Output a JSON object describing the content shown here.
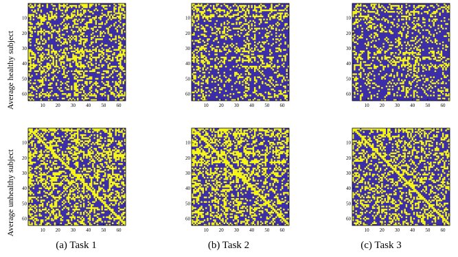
{
  "row_labels": [
    "Average healthy subject",
    "Average unhealthy subject"
  ],
  "captions": [
    "(a) Task 1",
    "(b) Task 2",
    "(c) Task 3"
  ],
  "colors": {
    "one": "#f7f716",
    "zero": "#3b2ea8",
    "frame": "#000000"
  },
  "chart_data": [
    {
      "type": "heatmap",
      "task": "Task 1",
      "group": "healthy",
      "size": 64,
      "values": [
        0,
        1
      ],
      "diagonal": 0,
      "row_fill_density": [
        0.2,
        0.8,
        0.2,
        0.15,
        0.5,
        0.3,
        0.15,
        0.45,
        0.8,
        0.5,
        0.3,
        0.15,
        0.2,
        0.4,
        0.2,
        0.5,
        0.4,
        0.15,
        0.4,
        0.2,
        0.15,
        0.3,
        0.2,
        0.6,
        0.15,
        0.3,
        0.15,
        0.15,
        0.15,
        0.2,
        0.7,
        0.5,
        0.55,
        0.3,
        0.6,
        0.7,
        0.7,
        0.35,
        0.3,
        0.15,
        0.5,
        0.6,
        0.4,
        0.15,
        0.8,
        0.3,
        0.15,
        0.15,
        0.3,
        0.2,
        0.15,
        0.15,
        0.5,
        0.3,
        0.2,
        0.15,
        0.2,
        0.15,
        0.15,
        0.6,
        0.85,
        0.2,
        0.2,
        0.15
      ],
      "xticks": [
        10,
        20,
        30,
        40,
        50,
        60
      ],
      "yticks": [
        10,
        20,
        30,
        40,
        50,
        60
      ],
      "xlim": [
        1,
        64
      ],
      "ylim": [
        1,
        64
      ]
    },
    {
      "type": "heatmap",
      "task": "Task 2",
      "group": "healthy",
      "size": 64,
      "values": [
        0,
        1
      ],
      "diagonal": 0,
      "row_fill_density": [
        0.2,
        0.6,
        0.3,
        0.4,
        0.85,
        0.2,
        0.3,
        0.5,
        0.8,
        0.3,
        0.15,
        0.15,
        0.2,
        0.3,
        0.15,
        0.15,
        0.4,
        0.3,
        0.2,
        0.15,
        0.15,
        0.5,
        0.2,
        0.15,
        0.2,
        0.15,
        0.15,
        0.15,
        0.2,
        0.3,
        0.5,
        0.3,
        0.15,
        0.15,
        0.15,
        0.7,
        0.6,
        0.6,
        0.3,
        0.2,
        0.2,
        0.7,
        0.15,
        0.15,
        0.15,
        0.2,
        0.15,
        0.15,
        0.2,
        0.15,
        0.15,
        0.2,
        0.3,
        0.15,
        0.15,
        0.2,
        0.15,
        0.2,
        0.3,
        0.15,
        0.2,
        0.15,
        0.15,
        0.15
      ],
      "xticks": [
        10,
        20,
        30,
        40,
        50,
        60
      ],
      "yticks": [
        10,
        20,
        30,
        40,
        50,
        60
      ],
      "xlim": [
        1,
        64
      ],
      "ylim": [
        1,
        64
      ]
    },
    {
      "type": "heatmap",
      "task": "Task 3",
      "group": "healthy",
      "size": 64,
      "values": [
        0,
        1
      ],
      "diagonal": 0,
      "row_fill_density": [
        0.15,
        0.6,
        0.3,
        0.2,
        0.15,
        0.8,
        0.3,
        0.15,
        0.15,
        0.15,
        0.4,
        0.15,
        0.15,
        0.2,
        0.3,
        0.15,
        0.15,
        0.15,
        0.2,
        0.15,
        0.15,
        0.15,
        0.2,
        0.15,
        0.15,
        0.3,
        0.15,
        0.15,
        0.15,
        0.2,
        0.15,
        0.3,
        0.6,
        0.3,
        0.15,
        0.7,
        0.6,
        0.4,
        0.15,
        0.15,
        0.7,
        0.5,
        0.5,
        0.15,
        0.15,
        0.15,
        0.4,
        0.15,
        0.15,
        0.15,
        0.2,
        0.2,
        0.3,
        0.15,
        0.15,
        0.15,
        0.2,
        0.15,
        0.15,
        0.2,
        0.15,
        0.15,
        0.2,
        0.15
      ],
      "xticks": [
        10,
        20,
        30,
        40,
        50,
        60
      ],
      "yticks": [
        10,
        20,
        30,
        40,
        50,
        60
      ],
      "xlim": [
        1,
        64
      ],
      "ylim": [
        1,
        64
      ]
    },
    {
      "type": "heatmap",
      "task": "Task 1",
      "group": "unhealthy",
      "size": 64,
      "values": [
        0,
        1
      ],
      "diagonal": 1,
      "row_fill_density": [
        0.85,
        0.85,
        0.5,
        0.3,
        0.4,
        0.3,
        0.3,
        0.3,
        0.6,
        0.3,
        0.3,
        0.3,
        0.3,
        0.3,
        0.3,
        0.6,
        0.6,
        0.7,
        0.7,
        0.4,
        0.3,
        0.3,
        0.3,
        0.3,
        0.3,
        0.3,
        0.6,
        0.3,
        0.3,
        0.3,
        0.7,
        0.6,
        0.6,
        0.3,
        0.3,
        0.3,
        0.7,
        0.3,
        0.3,
        0.3,
        0.3,
        0.5,
        0.3,
        0.3,
        0.3,
        0.6,
        0.3,
        0.3,
        0.3,
        0.3,
        0.3,
        0.3,
        0.3,
        0.6,
        0.3,
        0.3,
        0.3,
        0.3,
        0.3,
        0.6,
        0.3,
        0.3,
        0.3,
        0.3
      ],
      "xticks": [
        10,
        20,
        30,
        40,
        50,
        60
      ],
      "yticks": [
        10,
        20,
        30,
        40,
        50,
        60
      ],
      "xlim": [
        1,
        64
      ],
      "ylim": [
        1,
        64
      ]
    },
    {
      "type": "heatmap",
      "task": "Task 2",
      "group": "unhealthy",
      "size": 64,
      "values": [
        0,
        1
      ],
      "diagonal": 1,
      "row_fill_density": [
        0.85,
        0.85,
        0.5,
        0.7,
        0.5,
        0.4,
        0.3,
        0.3,
        0.3,
        0.4,
        0.3,
        0.3,
        0.3,
        0.3,
        0.3,
        0.7,
        0.7,
        0.6,
        0.3,
        0.3,
        0.3,
        0.6,
        0.85,
        0.3,
        0.3,
        0.3,
        0.3,
        0.3,
        0.3,
        0.7,
        0.85,
        0.3,
        0.3,
        0.3,
        0.5,
        0.3,
        0.3,
        0.4,
        0.3,
        0.3,
        0.6,
        0.3,
        0.3,
        0.3,
        0.3,
        0.3,
        0.3,
        0.3,
        0.7,
        0.3,
        0.3,
        0.3,
        0.3,
        0.3,
        0.3,
        0.6,
        0.3,
        0.3,
        0.3,
        0.3,
        0.3,
        0.3,
        0.3,
        0.3
      ],
      "xticks": [
        10,
        20,
        30,
        40,
        50,
        60
      ],
      "yticks": [
        10,
        20,
        30,
        40,
        50,
        60
      ],
      "xlim": [
        1,
        64
      ],
      "ylim": [
        1,
        64
      ]
    },
    {
      "type": "heatmap",
      "task": "Task 3",
      "group": "unhealthy",
      "size": 64,
      "values": [
        0,
        1
      ],
      "diagonal": 1,
      "row_fill_density": [
        0.85,
        0.4,
        0.3,
        0.3,
        0.4,
        0.5,
        0.3,
        0.3,
        0.3,
        0.5,
        0.3,
        0.3,
        0.3,
        0.3,
        0.3,
        0.3,
        0.5,
        0.3,
        0.3,
        0.3,
        0.3,
        0.3,
        0.3,
        0.3,
        0.3,
        0.3,
        0.3,
        0.3,
        0.3,
        0.3,
        0.5,
        0.3,
        0.3,
        0.3,
        0.3,
        0.3,
        0.3,
        0.3,
        0.3,
        0.4,
        0.3,
        0.3,
        0.3,
        0.3,
        0.3,
        0.3,
        0.3,
        0.5,
        0.3,
        0.3,
        0.3,
        0.3,
        0.3,
        0.3,
        0.3,
        0.3,
        0.3,
        0.3,
        0.3,
        0.4,
        0.3,
        0.3,
        0.3,
        0.3
      ],
      "xticks": [
        10,
        20,
        30,
        40,
        50,
        60
      ],
      "yticks": [
        10,
        20,
        30,
        40,
        50,
        60
      ],
      "xlim": [
        1,
        64
      ],
      "ylim": [
        1,
        64
      ]
    }
  ]
}
